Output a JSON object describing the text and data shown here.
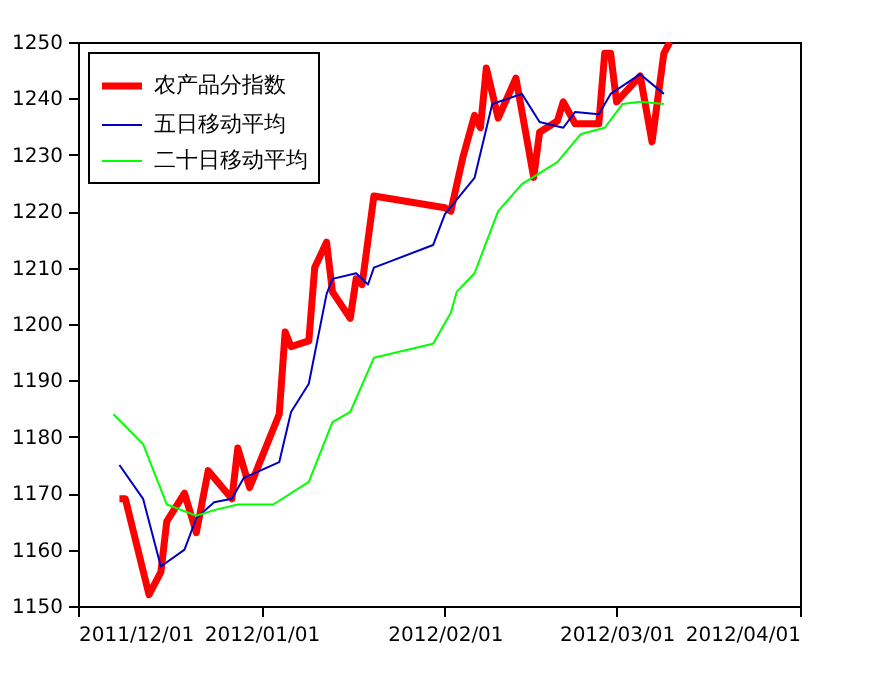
{
  "chart_data": {
    "type": "line",
    "xlim": [
      "2011-12-01",
      "2012-04-01"
    ],
    "xticks": [
      {
        "value": "2011-12-01",
        "label": "2011/12/01"
      },
      {
        "value": "2012-01-01",
        "label": "2012/01/01"
      },
      {
        "value": "2012-02-01",
        "label": "2012/02/01"
      },
      {
        "value": "2012-03-01",
        "label": "2012/03/01"
      },
      {
        "value": "2012-04-01",
        "label": "2012/04/01"
      }
    ],
    "ylim": [
      1150,
      1250
    ],
    "yticks": [
      1150,
      1160,
      1170,
      1180,
      1190,
      1200,
      1210,
      1220,
      1230,
      1240,
      1250
    ],
    "grid": false,
    "legend": "top left",
    "line_style": "solid",
    "series": [
      {
        "name": "农产品分指数",
        "color": "#ff0000",
        "x": [
          "2011-12-08",
          "2011-12-09",
          "2011-12-13",
          "2011-12-15",
          "2011-12-16",
          "2011-12-19",
          "2011-12-21",
          "2011-12-23",
          "2011-12-27",
          "2011-12-28",
          "2011-12-30",
          "2012-01-04",
          "2012-01-05",
          "2012-01-06",
          "2012-01-09",
          "2012-01-10",
          "2012-01-12",
          "2012-01-13",
          "2012-01-16",
          "2012-01-17",
          "2012-01-18",
          "2012-01-20",
          "2012-02-01",
          "2012-02-02",
          "2012-02-04",
          "2012-02-06",
          "2012-02-07",
          "2012-02-08",
          "2012-02-10",
          "2012-02-13",
          "2012-02-16",
          "2012-02-17",
          "2012-02-20",
          "2012-02-21",
          "2012-02-23",
          "2012-02-27",
          "2012-02-28",
          "2012-02-29",
          "2012-03-01",
          "2012-03-05",
          "2012-03-07",
          "2012-03-09",
          "2012-03-10"
        ],
        "values": [
          1169,
          1169,
          1152,
          1156,
          1165,
          1170,
          1163,
          1174,
          1169,
          1178,
          1171,
          1184,
          1198.6,
          1196,
          1197,
          1210,
          1214.5,
          1205.7,
          1201,
          1208,
          1207,
          1222.7,
          1220.6,
          1220,
          1229.4,
          1237,
          1234.8,
          1245.4,
          1236.5,
          1243.6,
          1226,
          1234,
          1236,
          1239.4,
          1235.5,
          1235.5,
          1248,
          1248,
          1239.4,
          1244,
          1232.3,
          1248,
          1250
        ]
      },
      {
        "name": "五日移动平均",
        "color": "#0000c0",
        "x": [
          "2011-12-08",
          "2011-12-12",
          "2011-12-15",
          "2011-12-19",
          "2011-12-21",
          "2011-12-24",
          "2011-12-27",
          "2011-12-29",
          "2012-01-04",
          "2012-01-06",
          "2012-01-09",
          "2012-01-12",
          "2012-01-13",
          "2012-01-17",
          "2012-01-19",
          "2012-01-20",
          "2012-01-30",
          "2012-02-01",
          "2012-02-06",
          "2012-02-09",
          "2012-02-14",
          "2012-02-17",
          "2012-02-21",
          "2012-02-23",
          "2012-02-27",
          "2012-02-29",
          "2012-03-05",
          "2012-03-09"
        ],
        "values": [
          1175,
          1169,
          1157,
          1160,
          1165.6,
          1168.4,
          1169,
          1172.7,
          1175.5,
          1184.4,
          1189.4,
          1205.3,
          1208,
          1209,
          1207,
          1210,
          1214,
          1219.5,
          1225.9,
          1239,
          1240.8,
          1235.8,
          1234.8,
          1237.6,
          1237.2,
          1240.8,
          1244.3,
          1240.8
        ]
      },
      {
        "name": "二十日移动平均",
        "color": "#00ff00",
        "x": [
          "2011-12-07",
          "2011-12-12",
          "2011-12-16",
          "2011-12-21",
          "2011-12-24",
          "2011-12-28",
          "2012-01-03",
          "2012-01-09",
          "2012-01-13",
          "2012-01-16",
          "2012-01-20",
          "2012-01-30",
          "2012-02-02",
          "2012-02-03",
          "2012-02-06",
          "2012-02-10",
          "2012-02-14",
          "2012-02-20",
          "2012-02-24",
          "2012-02-28",
          "2012-03-02",
          "2012-03-05",
          "2012-03-09"
        ],
        "values": [
          1184,
          1178.7,
          1168,
          1166,
          1167,
          1168,
          1168,
          1172,
          1182.6,
          1184.4,
          1194,
          1196.5,
          1202,
          1205.7,
          1209,
          1220,
          1224.8,
          1228.7,
          1233.7,
          1234.8,
          1239,
          1239.4,
          1239
        ]
      }
    ]
  }
}
